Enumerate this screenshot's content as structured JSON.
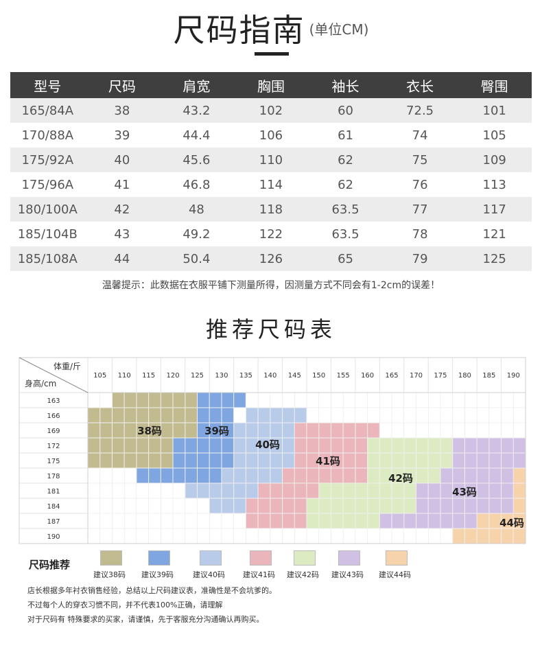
{
  "header": {
    "title": "尺码指南",
    "unit": "(单位CM)"
  },
  "size_table": {
    "headers": [
      "型号",
      "尺码",
      "肩宽",
      "胸围",
      "袖长",
      "衣长",
      "臀围"
    ],
    "rows": [
      [
        "165/84A",
        "38",
        "43.2",
        "102",
        "60",
        "72.5",
        "101"
      ],
      [
        "170/88A",
        "39",
        "44.4",
        "106",
        "61",
        "74",
        "105"
      ],
      [
        "175/92A",
        "40",
        "45.6",
        "110",
        "62",
        "75",
        "109"
      ],
      [
        "175/96A",
        "41",
        "46.8",
        "114",
        "62",
        "76",
        "113"
      ],
      [
        "180/100A",
        "42",
        "48",
        "118",
        "63.5",
        "77",
        "117"
      ],
      [
        "185/104B",
        "43",
        "49.2",
        "122",
        "63.5",
        "78",
        "121"
      ],
      [
        "185/108A",
        "44",
        "50.4",
        "126",
        "65",
        "79",
        "125"
      ]
    ]
  },
  "tip": "温馨提示：此数据在衣服平铺下测量所得，因测量方式不同会有1-2cm的误差！",
  "recommend": {
    "title": "推荐尺码表",
    "corner_weight": "体重/斤",
    "corner_height": "身高/cm",
    "weights": [
      "105",
      "110",
      "115",
      "120",
      "125",
      "130",
      "135",
      "140",
      "145",
      "150",
      "155",
      "160",
      "165",
      "170",
      "175",
      "180",
      "185",
      "190"
    ],
    "heights": [
      "163",
      "166",
      "169",
      "172",
      "175",
      "178",
      "181",
      "184",
      "187",
      "190"
    ],
    "zone_labels": [
      "38码",
      "39码",
      "40码",
      "41码",
      "42码",
      "43码",
      "44码"
    ],
    "colors": {
      "38": "#c2bb90",
      "39": "#7fa6e1",
      "40": "#b8ccea",
      "41": "#eab6bb",
      "42": "#dcebc2",
      "43": "#cfc0e4",
      "44": "#f7d3ab"
    }
  },
  "legend": {
    "label": "尺码推荐",
    "items": [
      "建议38码",
      "建议39码",
      "建议40码",
      "建议41码",
      "建议42码",
      "建议43码",
      "建议44码"
    ]
  },
  "notes": [
    "店长根据多年衬衣销售经验，总结以上尺码建议表，准确性是不会坑爹的。",
    "不过每个人的穿衣习惯不同，并不代表100%正确，请理解",
    "对于尺码有 特殊要求的买家，请谨慎，先于客服充分沟通确认再购买。"
  ]
}
